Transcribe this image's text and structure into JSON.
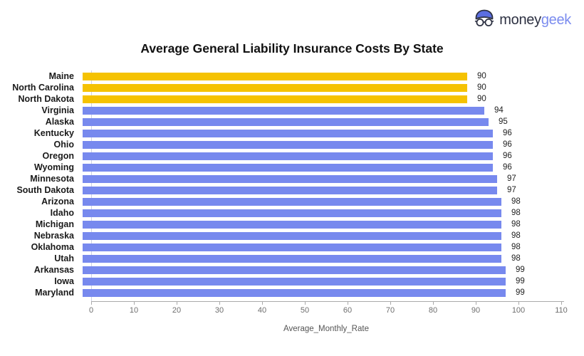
{
  "logo": {
    "brand_prefix": "money",
    "brand_suffix": "geek"
  },
  "title": "Average General Liability Insurance Costs By State",
  "chart_data": {
    "type": "bar",
    "orientation": "horizontal",
    "title": "Average General Liability Insurance Costs By State",
    "categories": [
      "Maine",
      "North Carolina",
      "North Dakota",
      "Virginia",
      "Alaska",
      "Kentucky",
      "Ohio",
      "Oregon",
      "Wyoming",
      "Minnesota",
      "South Dakota",
      "Arizona",
      "Idaho",
      "Michigan",
      "Nebraska",
      "Oklahoma",
      "Utah",
      "Arkansas",
      "Iowa",
      "Maryland"
    ],
    "values": [
      90,
      90,
      90,
      94,
      95,
      96,
      96,
      96,
      96,
      97,
      97,
      98,
      98,
      98,
      98,
      98,
      98,
      99,
      99,
      99
    ],
    "highlight_count": 3,
    "highlight_color": "#F5C202",
    "bar_color": "#7789EE",
    "xlabel": "Average_Monthly_Rate",
    "xlim": [
      0,
      110
    ],
    "xticks": [
      0,
      10,
      20,
      30,
      40,
      50,
      60,
      70,
      80,
      90,
      100,
      110
    ],
    "value_labels_shown": true,
    "grid": false,
    "legend": "none"
  },
  "colors": {
    "background": "#FFFFFF",
    "title_text": "#111111",
    "category_label": "#1A1A1A",
    "value_label": "#222222",
    "tick_label": "#6E6E6E",
    "axis_line": "#AAAAAA",
    "baseline": "#CDD0E3",
    "logo_dark": "#2D3142",
    "logo_blue": "#7B8CEF"
  }
}
